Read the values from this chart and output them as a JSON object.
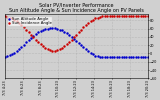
{
  "title": "Solar PV/Inverter Performance\nSun Altitude Angle & Sun Incidence Angle on PV Panels",
  "title_fontsize": 3.5,
  "bg_color": "#d0d0d0",
  "plot_bg_color": "#d0d0d0",
  "series": [
    {
      "label": "Sun Altitude Angle",
      "color": "#0000cc",
      "marker": ".",
      "markersize": 1.5,
      "x": [
        0,
        0.5,
        1,
        1.5,
        2,
        2.5,
        3,
        3.5,
        4,
        4.5,
        5,
        5.5,
        6,
        6.5,
        7,
        7.5,
        8,
        8.5,
        9,
        9.5,
        10,
        10.5,
        11,
        11.5,
        12,
        12.5,
        13,
        13.5,
        14,
        14.5,
        15,
        15.5,
        16,
        16.5,
        17,
        17.5,
        18,
        18.5,
        19,
        19.5,
        20,
        20.5,
        21,
        21.5,
        22,
        22.5,
        23,
        23.5,
        24,
        24.5,
        25,
        25.5,
        26,
        26.5,
        27,
        27.5,
        28,
        28.5,
        29,
        29.5,
        30
      ],
      "y": [
        -8,
        -6,
        -4,
        -1,
        2,
        6,
        11,
        16,
        21,
        27,
        33,
        38,
        43,
        47,
        51,
        54,
        57,
        59,
        60,
        61,
        61,
        61,
        60,
        58,
        56,
        53,
        49,
        45,
        41,
        36,
        31,
        26,
        21,
        16,
        11,
        6,
        2,
        -2,
        -5,
        -7,
        -8,
        -9,
        -9,
        -9,
        -9,
        -9,
        -9,
        -9,
        -8,
        -8,
        -8,
        -8,
        -8,
        -8,
        -8,
        -8,
        -8,
        -8,
        -8,
        -8,
        -8
      ]
    },
    {
      "label": "Sun Incidence Angle",
      "color": "#cc0000",
      "marker": ".",
      "markersize": 1.5,
      "x": [
        0,
        0.5,
        1,
        1.5,
        2,
        2.5,
        3,
        3.5,
        4,
        4.5,
        5,
        5.5,
        6,
        6.5,
        7,
        7.5,
        8,
        8.5,
        9,
        9.5,
        10,
        10.5,
        11,
        11.5,
        12,
        12.5,
        13,
        13.5,
        14,
        14.5,
        15,
        15.5,
        16,
        16.5,
        17,
        17.5,
        18,
        18.5,
        19,
        19.5,
        20,
        20.5,
        21,
        21.5,
        22,
        22.5,
        23,
        23.5,
        24,
        24.5,
        25,
        25.5,
        26,
        26.5,
        27,
        27.5,
        28,
        28.5,
        29,
        29.5,
        30
      ],
      "y": [
        90,
        89,
        87,
        85,
        82,
        78,
        74,
        69,
        63,
        57,
        51,
        45,
        39,
        33,
        27,
        22,
        17,
        13,
        10,
        8,
        7,
        7,
        8,
        10,
        13,
        17,
        22,
        27,
        33,
        39,
        45,
        51,
        57,
        63,
        69,
        74,
        78,
        82,
        85,
        87,
        89,
        90,
        90,
        90,
        90,
        90,
        90,
        90,
        90,
        90,
        90,
        90,
        90,
        90,
        90,
        90,
        90,
        90,
        90,
        90,
        90
      ]
    }
  ],
  "xlabel": "",
  "ylabel": "",
  "xlim": [
    0,
    30
  ],
  "ylim": [
    -10,
    95
  ],
  "yticks": [
    -60,
    -40,
    -20,
    0,
    20,
    40,
    60,
    80
  ],
  "xtick_labels": [
    "7/3 4:23",
    "7/3 6:23",
    "7/3 8:23",
    "7/3 10:23",
    "7/3 12:23",
    "7/3 14:23",
    "7/3 16:23",
    "7/3 18:23",
    "7/3 20:23"
  ],
  "xtick_positions": [
    0,
    3.75,
    7.5,
    11.25,
    15,
    18.75,
    22.5,
    26.25,
    30
  ],
  "grid": true,
  "grid_style": ":",
  "grid_color": "#999999",
  "legend_fontsize": 2.8,
  "tick_fontsize": 2.5
}
